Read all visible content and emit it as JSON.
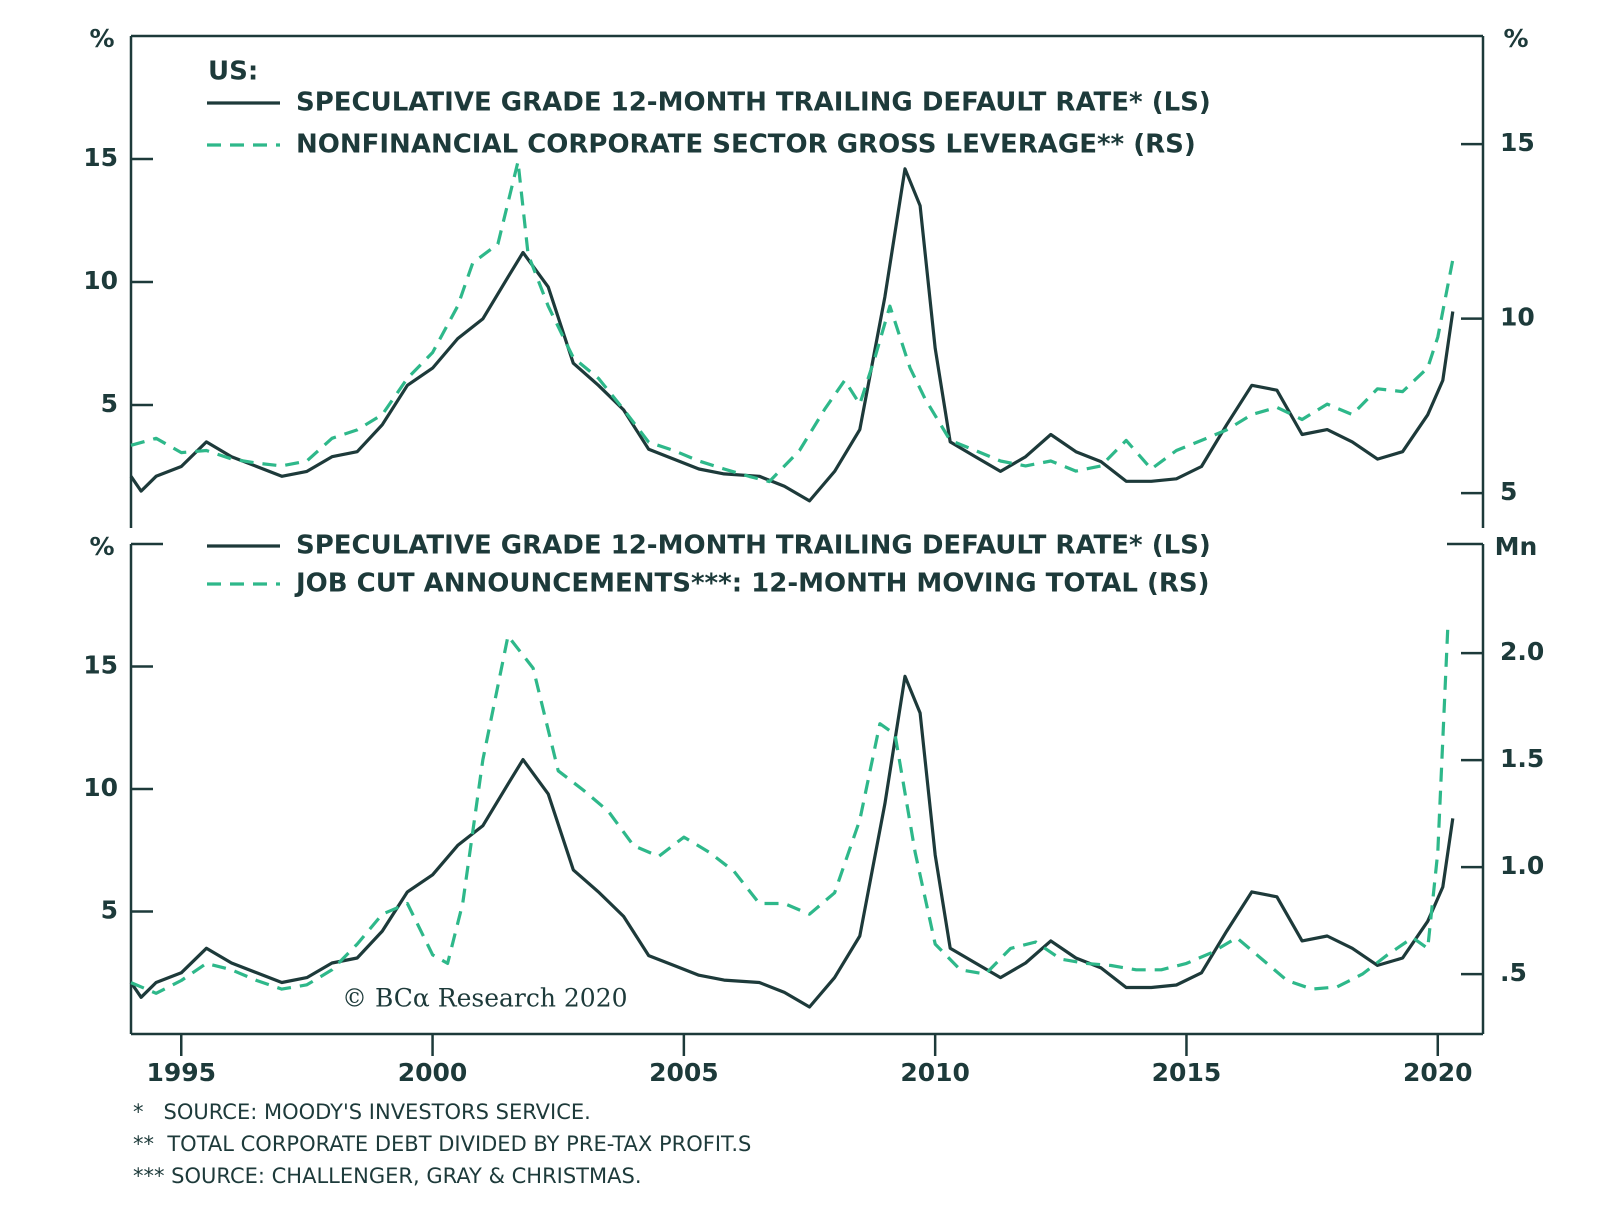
{
  "chart_data": [
    {
      "type": "line",
      "legend_title": "US:",
      "y_label": "%",
      "y2_label": "%",
      "xlim": [
        1994,
        2020.9
      ],
      "ylim": [
        0,
        20
      ],
      "yticks": [
        5,
        10,
        15
      ],
      "y2lim": [
        4,
        18.1
      ],
      "y2ticks": [
        5,
        10,
        15
      ],
      "series": [
        {
          "name": "SPECULATIVE GRADE 12-MONTH TRAILING DEFAULT RATE* (LS)",
          "color": "#1d3a3a",
          "style": "solid",
          "x": [
            1994.0,
            1994.2,
            1994.5,
            1995.0,
            1995.5,
            1996.0,
            1996.5,
            1997.0,
            1997.5,
            1998.0,
            1998.5,
            1999.0,
            1999.5,
            2000.0,
            2000.5,
            2001.0,
            2001.5,
            2001.8,
            2002.3,
            2002.8,
            2003.3,
            2003.8,
            2004.3,
            2004.8,
            2005.3,
            2005.8,
            2006.5,
            2007.0,
            2007.5,
            2008.0,
            2008.5,
            2009.0,
            2009.4,
            2009.7,
            2010.0,
            2010.3,
            2010.8,
            2011.3,
            2011.8,
            2012.3,
            2012.8,
            2013.3,
            2013.8,
            2014.3,
            2014.8,
            2015.3,
            2015.8,
            2016.3,
            2016.8,
            2017.3,
            2017.8,
            2018.3,
            2018.8,
            2019.3,
            2019.8,
            2020.1,
            2020.3
          ],
          "values": [
            2.1,
            1.5,
            2.1,
            2.5,
            3.5,
            2.9,
            2.5,
            2.1,
            2.3,
            2.9,
            3.1,
            4.2,
            5.8,
            6.5,
            7.7,
            8.5,
            10.2,
            11.2,
            9.8,
            6.7,
            5.8,
            4.8,
            3.2,
            2.8,
            2.4,
            2.2,
            2.1,
            1.7,
            1.1,
            2.3,
            4.0,
            9.4,
            14.6,
            13.1,
            7.3,
            3.5,
            2.9,
            2.3,
            2.9,
            3.8,
            3.1,
            2.7,
            1.9,
            1.9,
            2.0,
            2.5,
            4.2,
            5.8,
            5.6,
            3.8,
            4.0,
            3.5,
            2.8,
            3.1,
            4.6,
            6.0,
            8.8
          ]
        },
        {
          "name": "NONFINANCIAL CORPORATE SECTOR GROSS LEVERAGE** (RS)",
          "color": "#2eb88a",
          "style": "dashed",
          "axis": "y2",
          "x": [
            1994.0,
            1994.5,
            1995.0,
            1995.5,
            1996.0,
            1996.5,
            1997.0,
            1997.5,
            1998.0,
            1998.5,
            1999.0,
            1999.5,
            2000.0,
            2000.5,
            2000.8,
            2001.3,
            2001.7,
            2001.9,
            2002.3,
            2002.8,
            2003.3,
            2003.8,
            2004.3,
            2004.8,
            2005.3,
            2005.8,
            2006.3,
            2006.7,
            2007.3,
            2007.8,
            2008.2,
            2008.5,
            2008.8,
            2009.1,
            2009.5,
            2009.8,
            2010.3,
            2010.8,
            2011.3,
            2011.8,
            2012.3,
            2012.8,
            2013.3,
            2013.8,
            2014.3,
            2014.8,
            2015.3,
            2015.8,
            2016.3,
            2016.8,
            2017.3,
            2017.8,
            2018.3,
            2018.8,
            2019.3,
            2019.8,
            2020.0,
            2020.3
          ],
          "values": [
            6.37,
            6.57,
            6.16,
            6.22,
            5.98,
            5.86,
            5.78,
            5.92,
            6.57,
            6.81,
            7.25,
            8.29,
            9.03,
            10.36,
            11.6,
            12.14,
            14.5,
            11.84,
            10.36,
            8.88,
            8.29,
            7.4,
            6.46,
            6.22,
            5.92,
            5.69,
            5.48,
            5.33,
            6.22,
            7.4,
            8.23,
            7.55,
            8.88,
            10.36,
            8.59,
            7.7,
            6.51,
            6.22,
            5.92,
            5.78,
            5.92,
            5.63,
            5.78,
            6.51,
            5.69,
            6.22,
            6.51,
            6.81,
            7.25,
            7.46,
            7.11,
            7.55,
            7.25,
            7.99,
            7.91,
            8.59,
            9.47,
            11.69
          ]
        }
      ]
    },
    {
      "type": "line",
      "y_label": "%",
      "y2_label": "Mn",
      "watermark": "© BCα Research 2020",
      "xlim": [
        1994,
        2020.9
      ],
      "xticks": [
        1995,
        2000,
        2005,
        2010,
        2015,
        2020
      ],
      "ylim": [
        0,
        20
      ],
      "yticks": [
        5,
        10,
        15
      ],
      "y2lim": [
        0.22,
        2.51
      ],
      "y2ticks": [
        {
          "value": 0.5,
          "label": ".5"
        },
        {
          "value": 1.0,
          "label": "1.0"
        },
        {
          "value": 1.5,
          "label": "1.5"
        },
        {
          "value": 2.0,
          "label": "2.0"
        }
      ],
      "series": [
        {
          "name": "SPECULATIVE GRADE 12-MONTH TRAILING DEFAULT RATE* (LS)",
          "color": "#1d3a3a",
          "style": "solid",
          "x": [
            1994.0,
            1994.2,
            1994.5,
            1995.0,
            1995.5,
            1996.0,
            1996.5,
            1997.0,
            1997.5,
            1998.0,
            1998.5,
            1999.0,
            1999.5,
            2000.0,
            2000.5,
            2001.0,
            2001.5,
            2001.8,
            2002.3,
            2002.8,
            2003.3,
            2003.8,
            2004.3,
            2004.8,
            2005.3,
            2005.8,
            2006.5,
            2007.0,
            2007.5,
            2008.0,
            2008.5,
            2009.0,
            2009.4,
            2009.7,
            2010.0,
            2010.3,
            2010.8,
            2011.3,
            2011.8,
            2012.3,
            2012.8,
            2013.3,
            2013.8,
            2014.3,
            2014.8,
            2015.3,
            2015.8,
            2016.3,
            2016.8,
            2017.3,
            2017.8,
            2018.3,
            2018.8,
            2019.3,
            2019.8,
            2020.1,
            2020.3
          ],
          "values": [
            2.1,
            1.5,
            2.1,
            2.5,
            3.5,
            2.9,
            2.5,
            2.1,
            2.3,
            2.9,
            3.1,
            4.2,
            5.8,
            6.5,
            7.7,
            8.5,
            10.2,
            11.2,
            9.8,
            6.7,
            5.8,
            4.8,
            3.2,
            2.8,
            2.4,
            2.2,
            2.1,
            1.7,
            1.1,
            2.3,
            4.0,
            9.4,
            14.6,
            13.1,
            7.3,
            3.5,
            2.9,
            2.3,
            2.9,
            3.8,
            3.1,
            2.7,
            1.9,
            1.9,
            2.0,
            2.5,
            4.2,
            5.8,
            5.6,
            3.8,
            4.0,
            3.5,
            2.8,
            3.1,
            4.6,
            6.0,
            8.8
          ]
        },
        {
          "name": "JOB CUT ANNOUNCEMENTS***: 12-MONTH MOVING TOTAL (RS)",
          "color": "#2eb88a",
          "style": "dashed",
          "axis": "y2",
          "x": [
            1994.0,
            1994.5,
            1995.0,
            1995.5,
            1996.0,
            1996.5,
            1997.0,
            1997.5,
            1998.0,
            1998.5,
            1999.0,
            1999.5,
            2000.0,
            2000.3,
            2000.6,
            2001.0,
            2001.5,
            2002.0,
            2002.5,
            2003.0,
            2003.5,
            2004.0,
            2004.5,
            2005.0,
            2005.5,
            2006.0,
            2006.5,
            2007.0,
            2007.5,
            2008.0,
            2008.5,
            2008.9,
            2009.2,
            2009.6,
            2010.0,
            2010.5,
            2011.0,
            2011.5,
            2012.0,
            2012.5,
            2013.0,
            2013.5,
            2014.0,
            2014.5,
            2015.0,
            2015.5,
            2016.0,
            2016.5,
            2017.0,
            2017.5,
            2018.0,
            2018.5,
            2019.0,
            2019.5,
            2019.8,
            2020.0,
            2020.2
          ],
          "values": [
            0.46,
            0.41,
            0.47,
            0.55,
            0.52,
            0.47,
            0.43,
            0.45,
            0.52,
            0.64,
            0.78,
            0.83,
            0.59,
            0.55,
            0.83,
            1.5,
            2.08,
            1.93,
            1.45,
            1.36,
            1.26,
            1.1,
            1.05,
            1.14,
            1.07,
            0.98,
            0.83,
            0.83,
            0.78,
            0.88,
            1.22,
            1.67,
            1.62,
            1.07,
            0.64,
            0.52,
            0.5,
            0.62,
            0.65,
            0.57,
            0.55,
            0.54,
            0.52,
            0.52,
            0.55,
            0.6,
            0.67,
            0.57,
            0.47,
            0.43,
            0.44,
            0.5,
            0.59,
            0.67,
            0.62,
            1.07,
            2.12
          ]
        }
      ]
    }
  ],
  "footnotes": [
    "*   SOURCE: MOODY'S INVESTORS SERVICE.",
    "**  TOTAL CORPORATE DEBT DIVIDED BY PRE-TAX PROFIT.S",
    "*** SOURCE: CHALLENGER, GRAY & CHRISTMAS."
  ]
}
